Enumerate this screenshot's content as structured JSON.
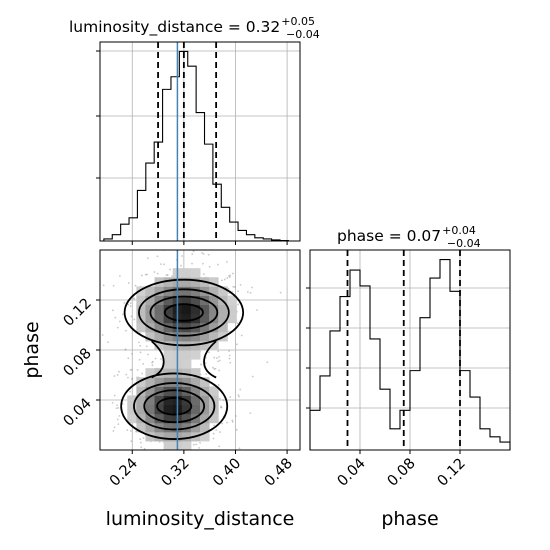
{
  "chart_data": {
    "type": "corner",
    "parameters": [
      "luminosity_distance",
      "phase"
    ],
    "truth": {
      "luminosity_distance": 0.31
    },
    "panels": [
      {
        "name": "luminosity_distance-marginal",
        "type": "histogram",
        "title_label": "luminosity_distance = 0.32",
        "title_upper": "+0.05",
        "title_lower": "−0.04",
        "xlim": [
          0.19,
          0.5
        ],
        "bin_edges": [
          0.196,
          0.209,
          0.222,
          0.235,
          0.248,
          0.261,
          0.274,
          0.287,
          0.3,
          0.313,
          0.326,
          0.339,
          0.352,
          0.365,
          0.378,
          0.391,
          0.404,
          0.417,
          0.43,
          0.443,
          0.456,
          0.469,
          0.482,
          0.495
        ],
        "counts": [
          0.01,
          0.03,
          0.08,
          0.11,
          0.24,
          0.37,
          0.47,
          0.72,
          0.78,
          0.9,
          0.83,
          0.61,
          0.46,
          0.27,
          0.16,
          0.09,
          0.05,
          0.03,
          0.015,
          0.01,
          0.005,
          0.002,
          0.0
        ],
        "quantiles": [
          0.28,
          0.32,
          0.37
        ],
        "xticks": [
          0.24,
          0.32,
          0.4,
          0.48
        ]
      },
      {
        "name": "phase-marginal",
        "type": "histogram",
        "title_label": "phase = 0.07",
        "title_upper": "+0.04",
        "title_lower": "−0.04",
        "xlim": [
          0.0,
          0.16
        ],
        "bin_edges": [
          0.0,
          0.008,
          0.016,
          0.024,
          0.032,
          0.04,
          0.048,
          0.056,
          0.064,
          0.072,
          0.08,
          0.088,
          0.096,
          0.104,
          0.112,
          0.12,
          0.128,
          0.136,
          0.144,
          0.152,
          0.16
        ],
        "counts": [
          0.15,
          0.28,
          0.45,
          0.58,
          0.68,
          0.62,
          0.42,
          0.23,
          0.08,
          0.15,
          0.3,
          0.5,
          0.65,
          0.72,
          0.6,
          0.3,
          0.2,
          0.08,
          0.05,
          0.03
        ],
        "quantiles": [
          0.03,
          0.075,
          0.12
        ],
        "xticks": [
          0.04,
          0.08,
          0.12
        ],
        "xticklabels": [
          "0.04",
          "0.08",
          "0.12"
        ],
        "xlabel": "phase"
      },
      {
        "name": "luminosity_distance-phase-2d",
        "type": "contour",
        "xlim": [
          0.19,
          0.5
        ],
        "ylim": [
          0.0,
          0.16
        ],
        "xticks": [
          0.24,
          0.32,
          0.4,
          0.48
        ],
        "xticklabels": [
          "0.24",
          "0.32",
          "0.40",
          "0.48"
        ],
        "yticks": [
          0.04,
          0.08,
          0.12
        ],
        "yticklabels": [
          "0.04",
          "0.08",
          "0.12"
        ],
        "xlabel": "luminosity_distance",
        "ylabel": "phase",
        "modes": [
          {
            "x": 0.32,
            "y": 0.11,
            "sx": 0.038,
            "sy": 0.016,
            "weight": 1.0
          },
          {
            "x": 0.305,
            "y": 0.035,
            "sx": 0.034,
            "sy": 0.016,
            "weight": 1.0
          }
        ]
      }
    ],
    "grid": true,
    "colors": {
      "truth": "#4682b4",
      "hist": "#000000",
      "fill": "#808080"
    }
  }
}
